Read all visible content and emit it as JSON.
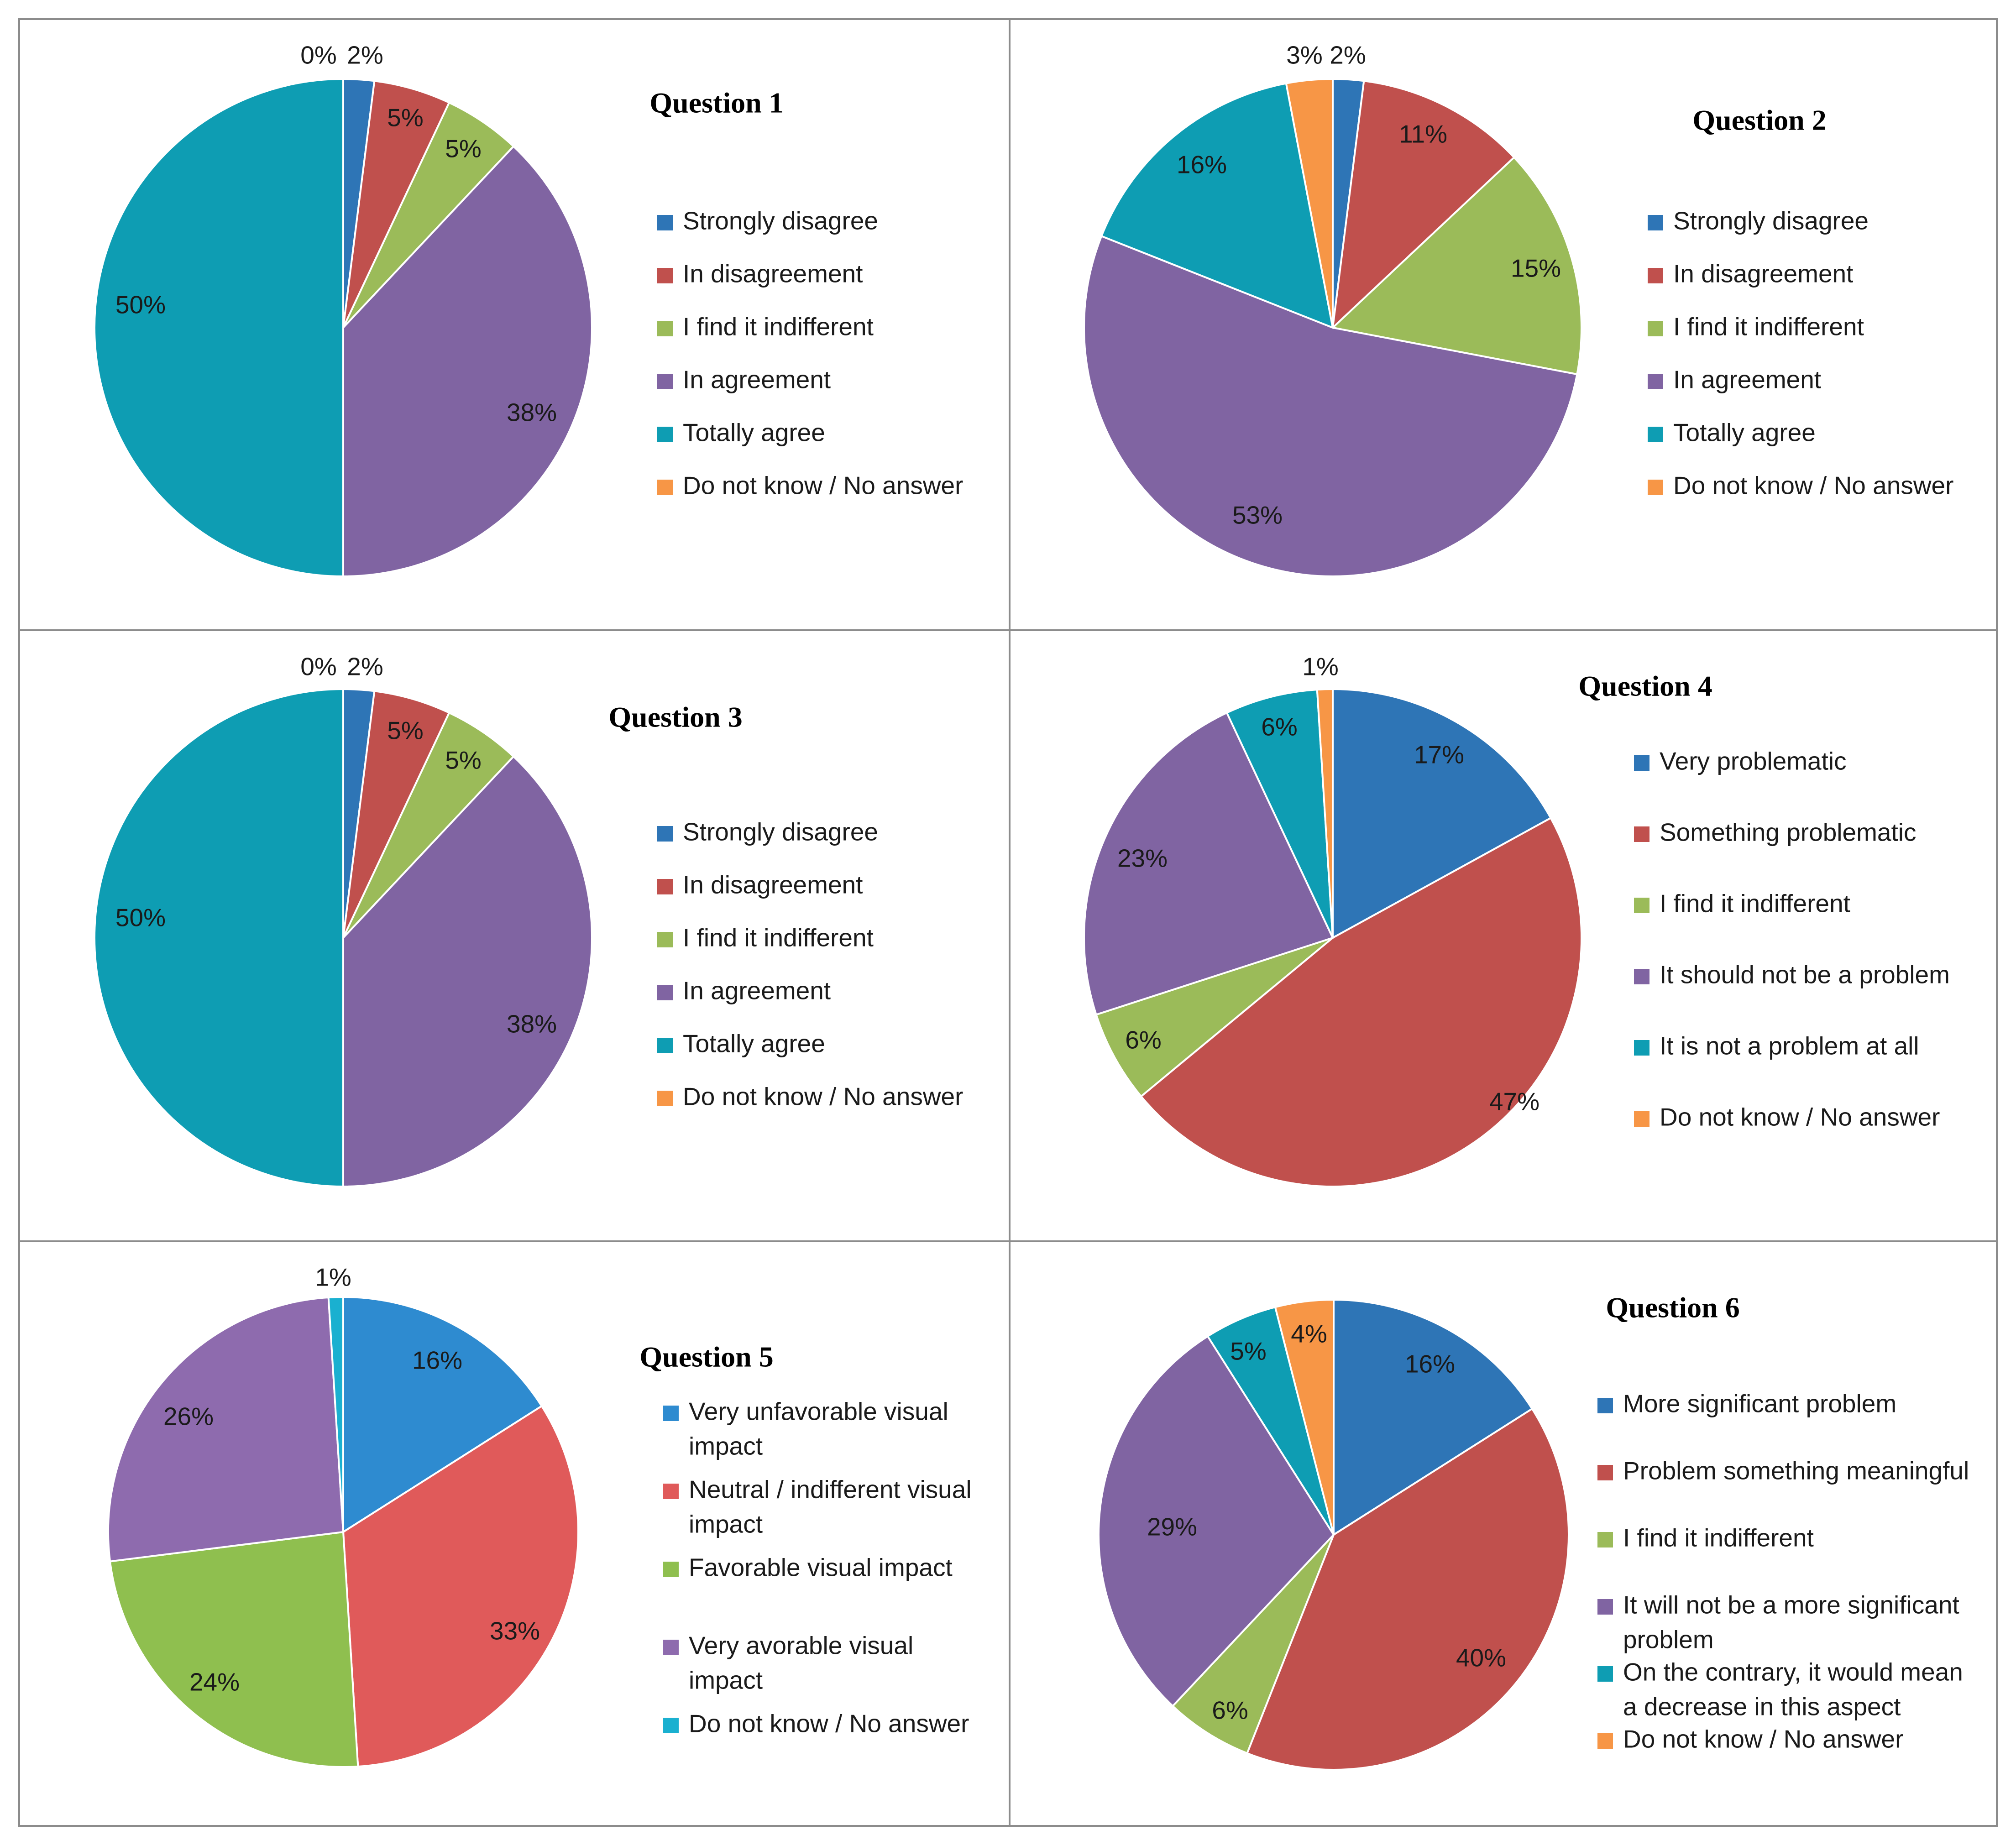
{
  "chart_data": [
    {
      "type": "pie",
      "title": "Question 1",
      "categories": [
        "Strongly disagree",
        "In disagreement",
        "I find it indifferent",
        "In agreement",
        "Totally agree",
        "Do not know / No answer"
      ],
      "values": [
        2,
        5,
        5,
        38,
        50,
        0
      ],
      "labels": [
        "2%",
        "5%",
        "5%",
        "38%",
        "50%",
        "0%"
      ],
      "colors": [
        "#2e75b6",
        "#c0504d",
        "#9bbb59",
        "#8064a2",
        "#0e9db3",
        "#f79646"
      ]
    },
    {
      "type": "pie",
      "title": "Question 2",
      "categories": [
        "Strongly disagree",
        "In disagreement",
        "I find it indifferent",
        "In agreement",
        "Totally agree",
        "Do not know / No answer"
      ],
      "values": [
        2,
        11,
        15,
        53,
        16,
        3
      ],
      "labels": [
        "2%",
        "11%",
        "15%",
        "53%",
        "16%",
        "3%"
      ],
      "colors": [
        "#2e75b6",
        "#c0504d",
        "#9bbb59",
        "#8064a2",
        "#0e9db3",
        "#f79646"
      ]
    },
    {
      "type": "pie",
      "title": "Question 3",
      "categories": [
        "Strongly disagree",
        "In disagreement",
        "I find it indifferent",
        "In agreement",
        "Totally agree",
        "Do not know / No answer"
      ],
      "values": [
        2,
        5,
        5,
        38,
        50,
        0
      ],
      "labels": [
        "2%",
        "5%",
        "5%",
        "38%",
        "50%",
        "0%"
      ],
      "colors": [
        "#2e75b6",
        "#c0504d",
        "#9bbb59",
        "#8064a2",
        "#0e9db3",
        "#f79646"
      ]
    },
    {
      "type": "pie",
      "title": "Question 4",
      "categories": [
        "Very problematic",
        "Something problematic",
        "I find it indifferent",
        "It should not be a problem",
        "It is not a problem at all",
        "Do not know / No answer"
      ],
      "values": [
        17,
        47,
        6,
        23,
        6,
        1
      ],
      "labels": [
        "17%",
        "47%",
        "6%",
        "23%",
        "6%",
        "1%"
      ],
      "colors": [
        "#2e75b6",
        "#c0504d",
        "#9bbb59",
        "#8064a2",
        "#0e9db3",
        "#f79646"
      ]
    },
    {
      "type": "pie",
      "title": "Question 5",
      "categories": [
        "Very unfavorable visual impact",
        "Neutral / indifferent visual impact",
        "Favorable visual impact",
        "Very avorable visual impact",
        "Do not know / No answer"
      ],
      "legend_lines": [
        [
          "Very unfavorable visual",
          "impact"
        ],
        [
          "Neutral / indifferent visual",
          "impact"
        ],
        [
          "Favorable visual impact"
        ],
        [
          "Very avorable visual",
          "impact"
        ],
        [
          "Do not know / No answer"
        ]
      ],
      "values": [
        16,
        33,
        24,
        26,
        1
      ],
      "labels": [
        "16%",
        "33%",
        "24%",
        "26%",
        "1%"
      ],
      "colors": [
        "#2e8bd0",
        "#e05a5a",
        "#8fbf4f",
        "#8e6bae",
        "#1ab0d0"
      ]
    },
    {
      "type": "pie",
      "title": "Question 6",
      "categories": [
        "More significant problem",
        "Problem something meaningful",
        "I find it indifferent",
        "It will not be a more significant problem",
        "On the contrary, it would mean a decrease in this aspect",
        "Do not know / No answer"
      ],
      "legend_lines": [
        [
          "More significant problem"
        ],
        [
          "Problem something meaningful"
        ],
        [
          "I find it indifferent"
        ],
        [
          "It will not be a more significant",
          "problem"
        ],
        [
          "On the contrary, it would mean",
          "a decrease in this aspect"
        ],
        [
          "Do not know / No answer"
        ]
      ],
      "values": [
        16,
        40,
        6,
        29,
        5,
        4
      ],
      "labels": [
        "16%",
        "40%",
        "6%",
        "29%",
        "5%",
        "4%"
      ],
      "colors": [
        "#2e75b6",
        "#c0504d",
        "#9bbb59",
        "#8064a2",
        "#0e9db3",
        "#f79646"
      ]
    }
  ]
}
